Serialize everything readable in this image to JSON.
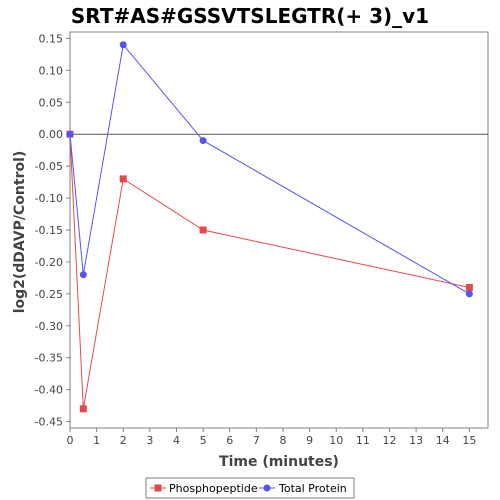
{
  "chart_data": {
    "type": "line",
    "title": "SRT#AS#GSSVTSLEGTR(+ 3)_v1",
    "xlabel": "Time (minutes)",
    "ylabel": "log2(dDAVP/Control)",
    "xlim": [
      0,
      15.7
    ],
    "ylim": [
      -0.46,
      0.16
    ],
    "xticks": [
      0,
      1,
      2,
      3,
      4,
      5,
      6,
      7,
      8,
      9,
      10,
      11,
      12,
      13,
      14,
      15
    ],
    "yticks": [
      0.15,
      0.1,
      0.05,
      0.0,
      -0.05,
      -0.1,
      -0.15,
      -0.2,
      -0.25,
      -0.3,
      -0.35,
      -0.4,
      -0.45
    ],
    "ytick_labels": [
      "0.15",
      "0.10",
      "0.05",
      "0.00",
      "-0.05",
      "-0.10",
      "-0.15",
      "-0.20",
      "-0.25",
      "-0.30",
      "-0.35",
      "-0.40",
      "-0.45"
    ],
    "zero_line": true,
    "grid": false,
    "legend_position": "bottom",
    "series": [
      {
        "name": "Phosphopeptide",
        "color": "#e8474b",
        "marker": "square",
        "x": [
          0,
          0.5,
          2,
          5,
          15
        ],
        "y": [
          0.0,
          -0.43,
          -0.07,
          -0.15,
          -0.24
        ]
      },
      {
        "name": "Total Protein",
        "color": "#5555ee",
        "marker": "circle",
        "x": [
          0,
          0.5,
          2,
          5,
          15
        ],
        "y": [
          0.0,
          -0.22,
          0.14,
          -0.01,
          -0.25
        ]
      }
    ]
  }
}
